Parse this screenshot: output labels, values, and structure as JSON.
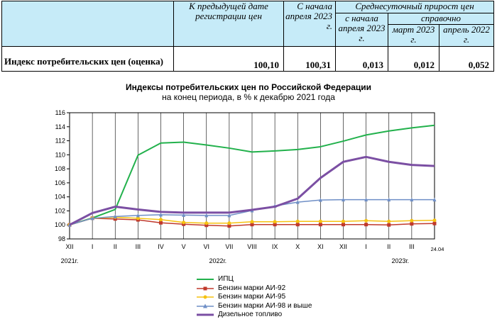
{
  "table": {
    "headers": {
      "col_prev_date": "К предыдущей дате регистрации цен",
      "col_since": "С начала апреля 2023 г.",
      "col_avg": "Среднесуточный прирост цен",
      "sub_since": "с начала апреля 2023 г.",
      "sub_ref": "справочно",
      "sub_march": "март 2023 г.",
      "sub_april": "апрель 2022 г."
    },
    "row": {
      "label": "Индекс потребительских цен (оценка)",
      "prev_date": "100,10",
      "since_april": "100,31",
      "avg_since": "0,013",
      "avg_march": "0,012",
      "avg_april_2022": "0,052"
    }
  },
  "chart_data": {
    "type": "line",
    "title": "Индексы потребительских цен по Российской Федерации",
    "subtitle": "на конец периода, в % к декабрю 2021 года",
    "categories": [
      "XII",
      "I",
      "II",
      "III",
      "IV",
      "V",
      "VI",
      "VII",
      "VIII",
      "IX",
      "X",
      "XI",
      "XII",
      "I",
      "II",
      "III",
      "24.04"
    ],
    "year_labels": [
      {
        "text": "2021г.",
        "at": 0
      },
      {
        "text": "2022г.",
        "at": 6.5
      },
      {
        "text": "2023г.",
        "at": 14.5
      }
    ],
    "ylim": [
      98,
      116
    ],
    "yticks": [
      98,
      100,
      102,
      104,
      106,
      108,
      110,
      112,
      114,
      116
    ],
    "grid": "vertical",
    "legend": "bottom",
    "series": [
      {
        "name": "ИПЦ",
        "color": "#22b14c",
        "marker": "none",
        "width": 2,
        "values": [
          100,
          100.99,
          102.2,
          109.95,
          111.68,
          111.8,
          111.4,
          110.95,
          110.4,
          110.55,
          110.75,
          111.15,
          111.95,
          112.83,
          113.4,
          113.84,
          114.2
        ]
      },
      {
        "name": "Бензин марки АИ-92",
        "color": "#c0392b",
        "marker": "square",
        "width": 1.5,
        "values": [
          100,
          100.95,
          100.85,
          100.72,
          100.3,
          100.1,
          99.95,
          99.85,
          100.05,
          100.05,
          100.05,
          100.05,
          100.05,
          100.05,
          100.0,
          100.15,
          100.2
        ]
      },
      {
        "name": "Бензин марки АИ-95",
        "color": "#f5c211",
        "marker": "circle",
        "width": 1.5,
        "values": [
          100,
          100.95,
          101.1,
          100.95,
          100.75,
          100.35,
          100.25,
          100.25,
          100.45,
          100.45,
          100.5,
          100.5,
          100.5,
          100.6,
          100.5,
          100.6,
          100.65
        ]
      },
      {
        "name": "Бензин марки АИ-98 и выше",
        "color": "#6f8fc6",
        "marker": "triangle",
        "width": 1.5,
        "values": [
          100,
          100.95,
          101.2,
          101.35,
          101.45,
          101.4,
          101.35,
          101.35,
          102.05,
          102.7,
          103.25,
          103.55,
          103.6,
          103.6,
          103.6,
          103.6,
          103.6
        ]
      },
      {
        "name": "Дизельное топливо",
        "color": "#7b4fa3",
        "marker": "none",
        "width": 3,
        "values": [
          100,
          101.7,
          102.6,
          102.2,
          101.85,
          101.75,
          101.75,
          101.75,
          102.15,
          102.6,
          103.75,
          106.7,
          109.0,
          109.7,
          109.0,
          108.55,
          108.4
        ]
      }
    ]
  }
}
